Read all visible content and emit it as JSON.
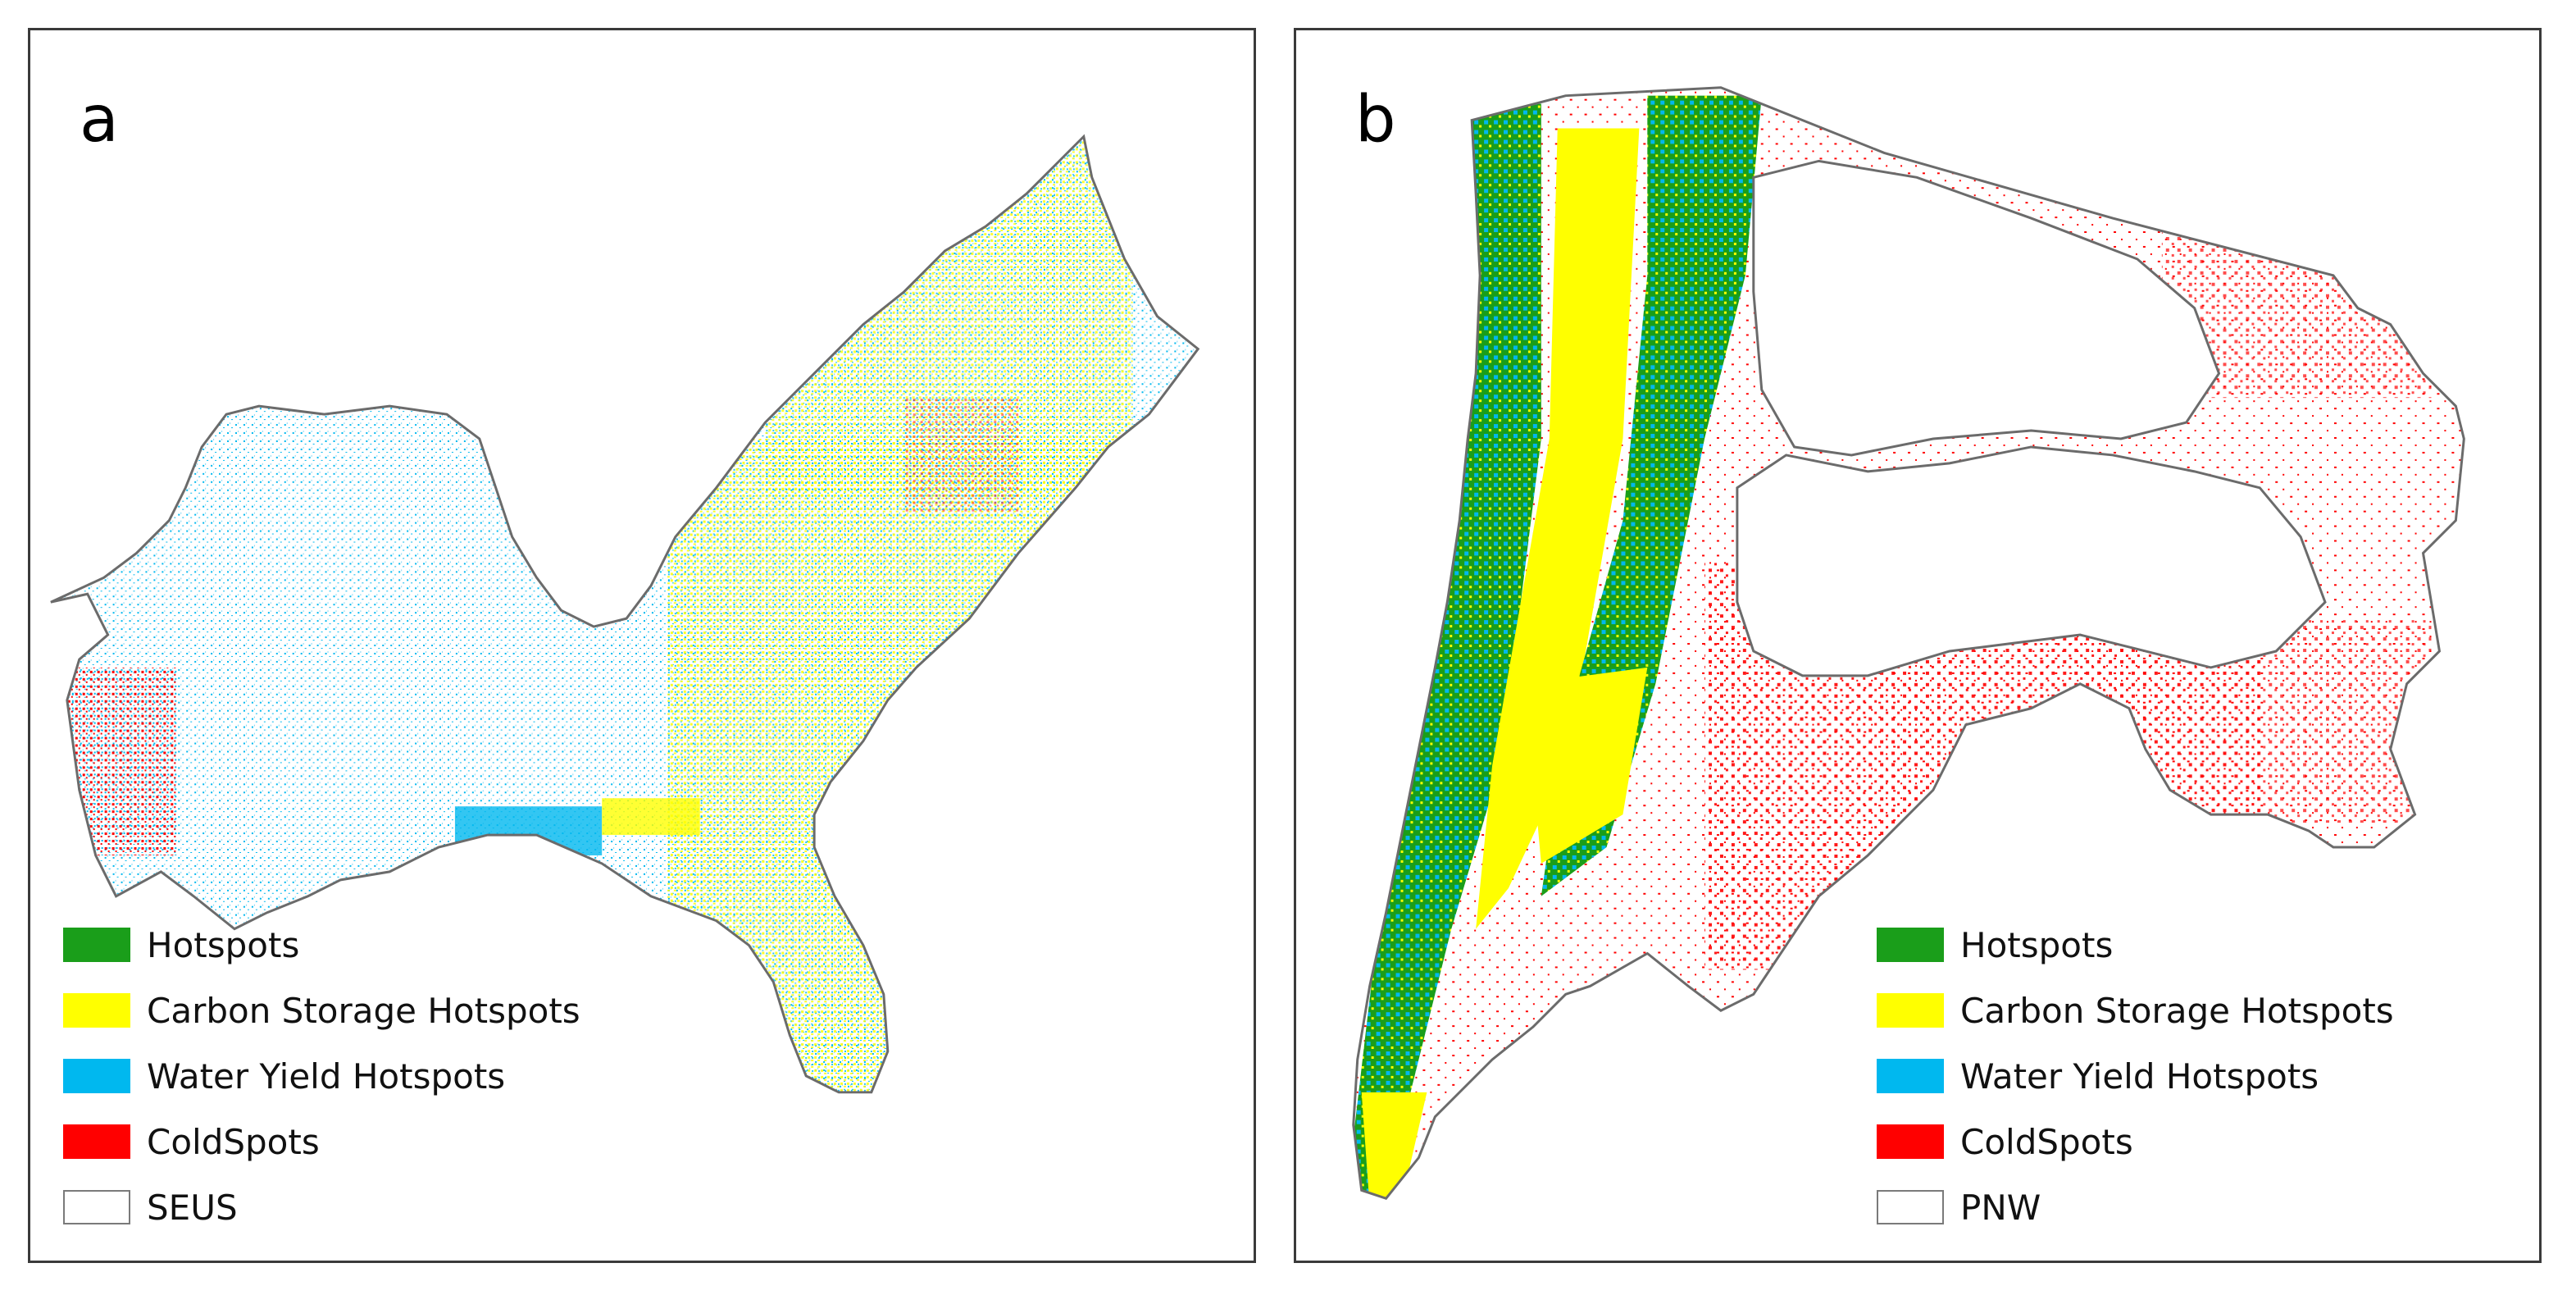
{
  "panels": [
    {
      "letter": "a",
      "region": "SEUS",
      "legend": [
        {
          "label": "Hotspots",
          "color": "#1a9e1a"
        },
        {
          "label": "Carbon Storage Hotspots",
          "color": "#ffff00"
        },
        {
          "label": "Water Yield Hotspots",
          "color": "#00b8ef"
        },
        {
          "label": "ColdSpots",
          "color": "#ff0000"
        },
        {
          "label": "SEUS",
          "color": "#ffffff"
        }
      ]
    },
    {
      "letter": "b",
      "region": "PNW",
      "legend": [
        {
          "label": "Hotspots",
          "color": "#1a9e1a"
        },
        {
          "label": "Carbon Storage Hotspots",
          "color": "#ffff00"
        },
        {
          "label": "Water Yield Hotspots",
          "color": "#00b8ef"
        },
        {
          "label": "ColdSpots",
          "color": "#ff0000"
        },
        {
          "label": "PNW",
          "color": "#ffffff"
        }
      ]
    }
  ]
}
